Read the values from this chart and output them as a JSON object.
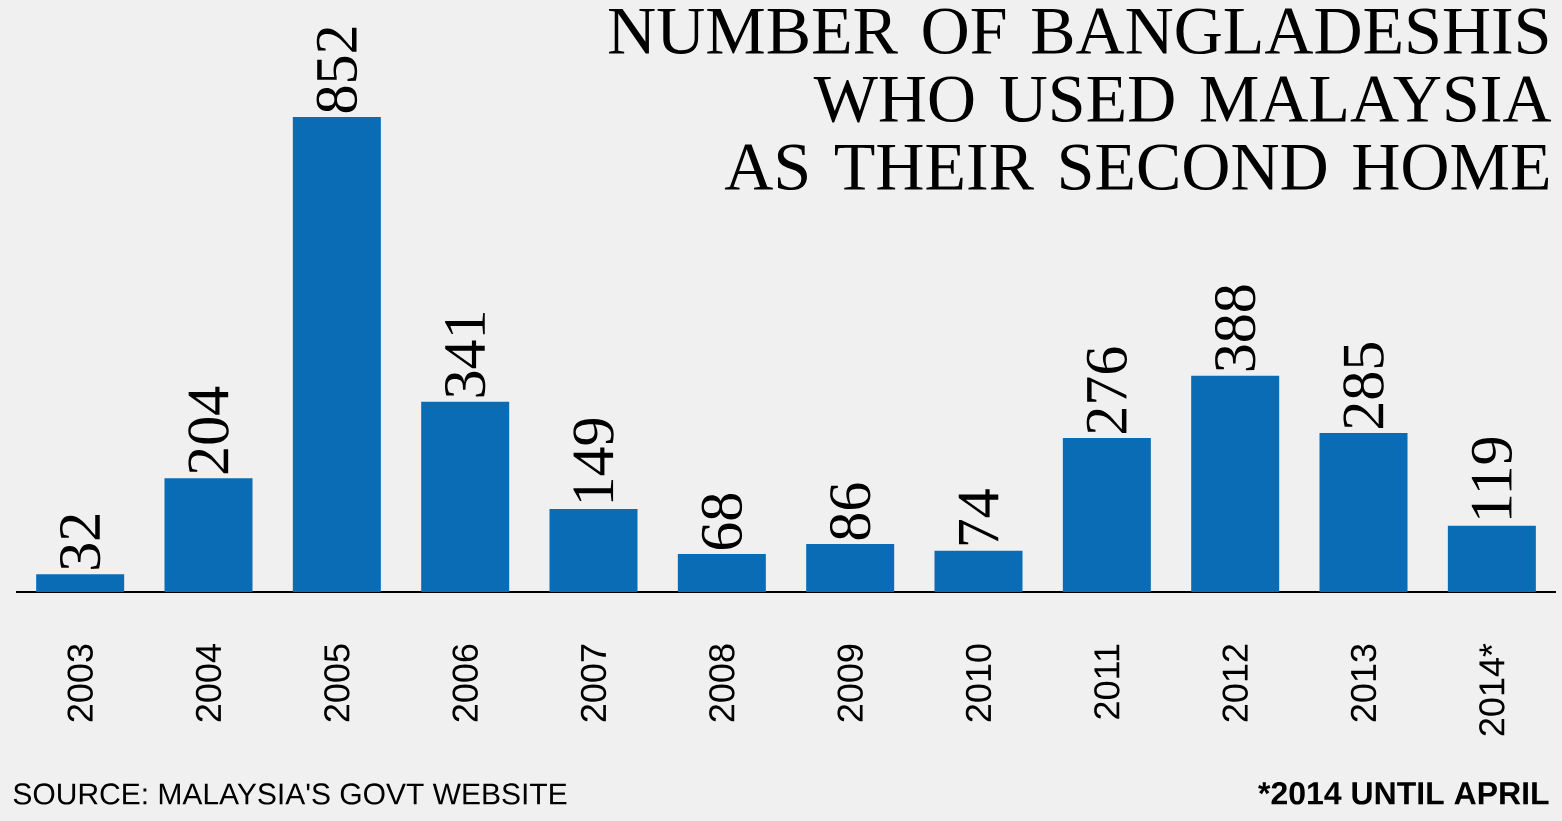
{
  "chart_data": {
    "type": "bar",
    "title": "NUMBER OF BANGLADESHIS WHO USED MALAYSIA AS THEIR SECOND HOME",
    "categories": [
      "2003",
      "2004",
      "2005",
      "2006",
      "2007",
      "2008",
      "2009",
      "2010",
      "2011",
      "2012",
      "2013",
      "2014*"
    ],
    "values": [
      32,
      204,
      852,
      341,
      149,
      68,
      86,
      74,
      276,
      388,
      285,
      119
    ],
    "color": "#0a6cb4",
    "data_labels": true,
    "annotations": [
      "SOURCE: MALAYSIA'S GOVT WEBSITE",
      "*2014 UNTIL APRIL"
    ]
  }
}
